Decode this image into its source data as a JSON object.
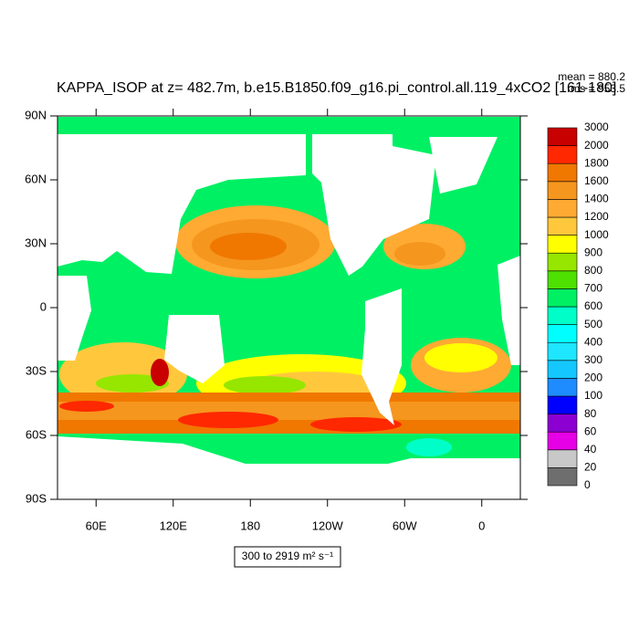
{
  "chart_data": {
    "type": "contour-map",
    "title": "KAPPA_ISOP at z= 482.7m, b.e15.B1850.f09_g16.pi_control.all.119_4xCO2 [161-180]",
    "mean_label": "mean = 880.2",
    "rms_label": "rms = 953.5",
    "xlim": [
      30,
      390
    ],
    "xticks": [
      {
        "value": 60,
        "label": "60E"
      },
      {
        "value": 120,
        "label": "120E"
      },
      180,
      {
        "value": 240,
        "label": "120W"
      },
      {
        "value": 300,
        "label": "60W"
      },
      {
        "value": 360,
        "label": "0"
      }
    ],
    "ylim": [
      -90,
      90
    ],
    "yticks": [
      {
        "value": -90,
        "label": "90S"
      },
      {
        "value": -60,
        "label": "60S"
      },
      {
        "value": -30,
        "label": "30S"
      },
      0,
      {
        "value": 30,
        "label": "30N"
      },
      {
        "value": 60,
        "label": "60N"
      },
      {
        "value": 90,
        "label": "90N"
      }
    ],
    "levels": [
      0,
      20,
      40,
      60,
      80,
      100,
      200,
      300,
      400,
      500,
      600,
      700,
      800,
      900,
      1000,
      1200,
      1400,
      1600,
      1800,
      2000,
      3000
    ],
    "colors": [
      "#6e6e6e",
      "#c8c8c8",
      "#e600e6",
      "#8c00d2",
      "#0000ff",
      "#1e8cff",
      "#14c8ff",
      "#1ee6ff",
      "#00ffff",
      "#00ffc8",
      "#00f064",
      "#4ee000",
      "#96e600",
      "#ffff00",
      "#ffc83c",
      "#ffaa32",
      "#f5961e",
      "#f07800",
      "#ff2800",
      "#c80000"
    ],
    "range_label": "300 to 2919 m² s⁻¹"
  }
}
